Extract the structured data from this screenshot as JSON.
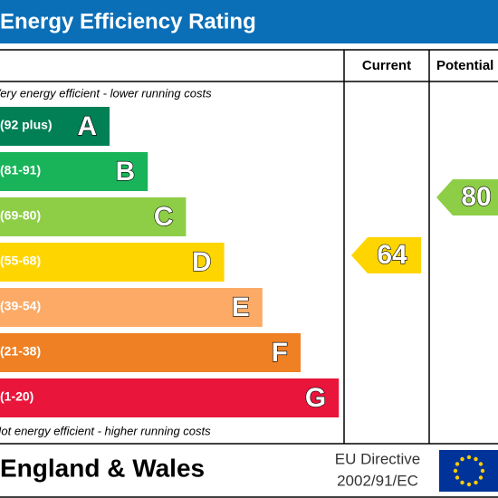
{
  "header": {
    "title": "Energy Efficiency Rating"
  },
  "columns": {
    "current": "Current",
    "potential": "Potential"
  },
  "top_note": "Very energy efficient - lower running costs",
  "bottom_note": "Not energy efficient - higher running costs",
  "bands": [
    {
      "range": "(92 plus)",
      "letter": "A",
      "color": "#008054"
    },
    {
      "range": "(81-91)",
      "letter": "B",
      "color": "#19b459"
    },
    {
      "range": "(69-80)",
      "letter": "C",
      "color": "#8dce46"
    },
    {
      "range": "(55-68)",
      "letter": "D",
      "color": "#ffd500"
    },
    {
      "range": "(39-54)",
      "letter": "E",
      "color": "#fcaa65"
    },
    {
      "range": "(21-38)",
      "letter": "F",
      "color": "#ef8023"
    },
    {
      "range": "(1-20)",
      "letter": "G",
      "color": "#e9153b"
    }
  ],
  "current": {
    "value": 64,
    "color": "#ffd500"
  },
  "potential": {
    "value": 80,
    "color": "#8dce46"
  },
  "footer": {
    "region": "England & Wales",
    "directive_line1": "EU Directive",
    "directive_line2": "2002/91/EC"
  }
}
